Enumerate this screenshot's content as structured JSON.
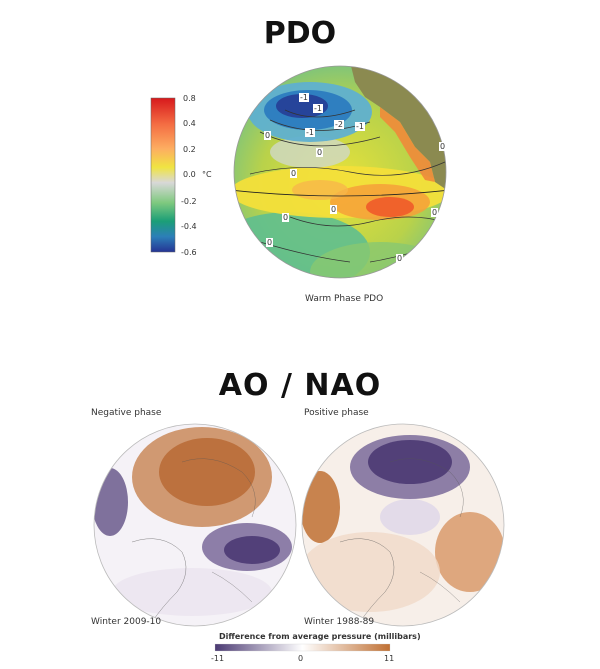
{
  "pdo": {
    "title": "PDO",
    "caption": "Warm Phase PDO",
    "colorbar": {
      "unit": "°C",
      "ticks": [
        "0.8",
        "0.4",
        "0.2",
        "0.0",
        "-0.2",
        "-0.4",
        "-0.6"
      ],
      "colors": [
        "#d7191c",
        "#f46d43",
        "#fdae61",
        "#f0e442",
        "#cfe8b0",
        "#d0d0d0",
        "#7fc97f",
        "#1b9e77",
        "#2c7fb8",
        "#253494"
      ]
    },
    "contour_labels": [
      "-1",
      "-1",
      "-1",
      "-2",
      "-1",
      "0",
      "0",
      "0",
      "0",
      "0",
      "0",
      "0",
      "0",
      "0"
    ]
  },
  "ao_nao": {
    "title": "AO / NAO",
    "negative": {
      "label": "Negative phase",
      "caption": "Winter 2009-10"
    },
    "positive": {
      "label": "Positive phase",
      "caption": "Winter 1988-89"
    },
    "colorbar": {
      "title": "Difference from average pressure (millibars)",
      "min_label": "-11",
      "mid_label": "0",
      "max_label": "11",
      "low_color": "#4b3a73",
      "high_color": "#c07033"
    }
  }
}
